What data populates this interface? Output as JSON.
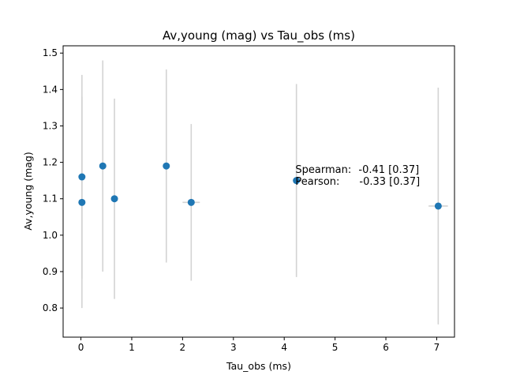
{
  "chart_data": {
    "type": "scatter",
    "title": "Av,young (mag) vs Tau_obs (ms)",
    "xlabel": "Tau_obs (ms)",
    "ylabel": "Av,young (mag)",
    "xlim": [
      -0.35,
      7.35
    ],
    "ylim": [
      0.72,
      1.52
    ],
    "xticks": [
      0,
      1,
      2,
      3,
      4,
      5,
      6,
      7
    ],
    "yticks": [
      0.8,
      0.9,
      1.0,
      1.1,
      1.2,
      1.3,
      1.4,
      1.5
    ],
    "xtick_labels": [
      "0",
      "1",
      "2",
      "3",
      "4",
      "5",
      "6",
      "7"
    ],
    "ytick_labels": [
      "0.8",
      "0.9",
      "1.0",
      "1.1",
      "1.2",
      "1.3",
      "1.4",
      "1.5"
    ],
    "grid": false,
    "marker_color": "#1f77b4",
    "errorbar_color": "#d3d3d3",
    "points": [
      {
        "x": 0.02,
        "y": 1.16,
        "ylo": 0.88,
        "yhi": 1.44,
        "xerr": 0.0
      },
      {
        "x": 0.02,
        "y": 1.09,
        "ylo": 0.8,
        "yhi": 1.38,
        "xerr": 0.0
      },
      {
        "x": 0.43,
        "y": 1.19,
        "ylo": 0.9,
        "yhi": 1.48,
        "xerr": 0.0
      },
      {
        "x": 0.66,
        "y": 1.1,
        "ylo": 0.825,
        "yhi": 1.375,
        "xerr": 0.0
      },
      {
        "x": 1.68,
        "y": 1.19,
        "ylo": 0.925,
        "yhi": 1.455,
        "xerr": 0.0
      },
      {
        "x": 2.17,
        "y": 1.09,
        "ylo": 0.875,
        "yhi": 1.305,
        "xerr": 0.17
      },
      {
        "x": 4.24,
        "y": 1.15,
        "ylo": 0.885,
        "yhi": 1.415,
        "xerr": 0.0
      },
      {
        "x": 7.03,
        "y": 1.08,
        "ylo": 0.755,
        "yhi": 1.405,
        "xerr": 0.19
      }
    ],
    "annotation": {
      "spearman_label": "Spearman:",
      "spearman_value": "-0.41 [0.37]",
      "pearson_label": "Pearson:",
      "pearson_value": "-0.33 [0.37]",
      "x": 4.22,
      "y": 1.19
    }
  }
}
